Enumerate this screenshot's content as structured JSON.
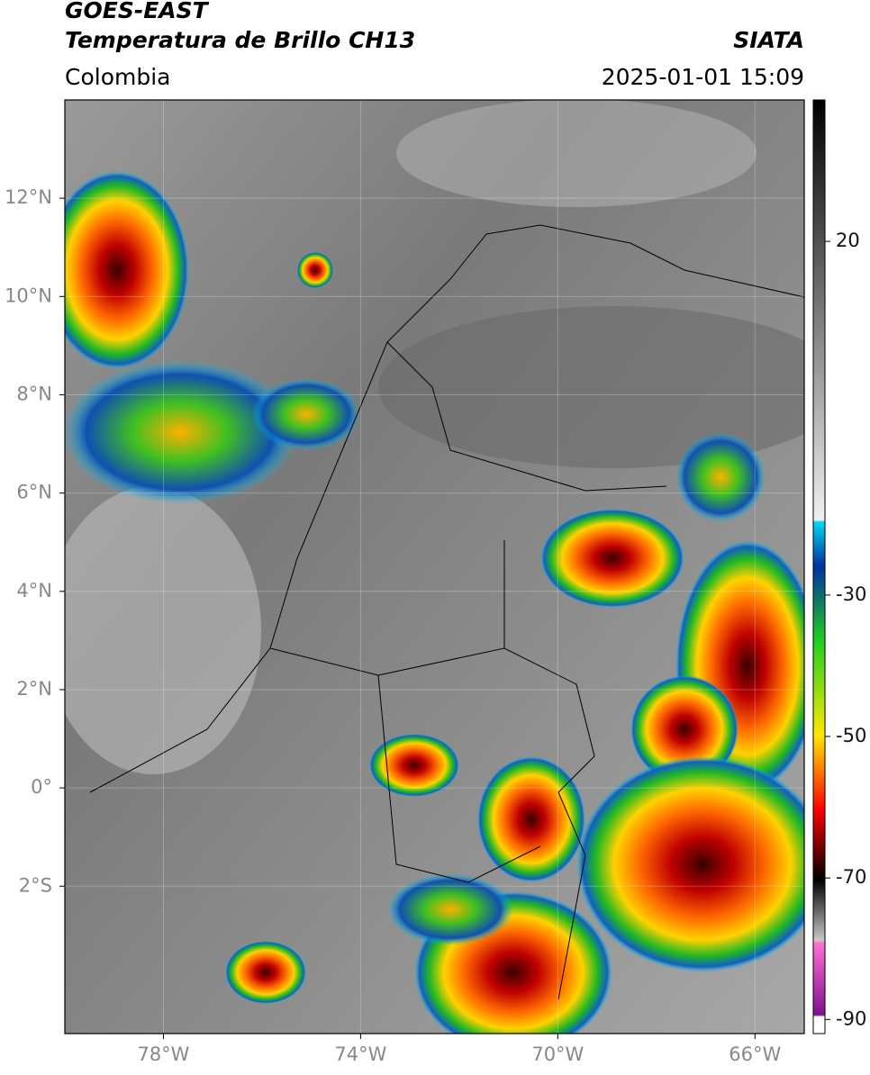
{
  "header": {
    "title": "GOES-EAST",
    "subtitle": "Temperatura de Brillo CH13",
    "source": "SIATA",
    "region": "Colombia",
    "datetime": "2025-01-01 15:09"
  },
  "map": {
    "xlim": [
      -80,
      -65
    ],
    "ylim": [
      -5,
      14
    ],
    "xticks": [
      {
        "value": -78,
        "label": "78°W"
      },
      {
        "value": -74,
        "label": "74°W"
      },
      {
        "value": -70,
        "label": "70°W"
      },
      {
        "value": -66,
        "label": "66°W"
      }
    ],
    "yticks": [
      {
        "value": 12,
        "label": "12°N"
      },
      {
        "value": 10,
        "label": "10°N"
      },
      {
        "value": 8,
        "label": "8°N"
      },
      {
        "value": 6,
        "label": "6°N"
      },
      {
        "value": 4,
        "label": "4°N"
      },
      {
        "value": 2,
        "label": "2°N"
      },
      {
        "value": 0,
        "label": "0°"
      },
      {
        "value": -2,
        "label": "2°S"
      }
    ],
    "grid": true
  },
  "colorbar": {
    "lim": [
      -92,
      40
    ],
    "ticks": [
      20,
      -30,
      -50,
      -70,
      -90
    ]
  }
}
